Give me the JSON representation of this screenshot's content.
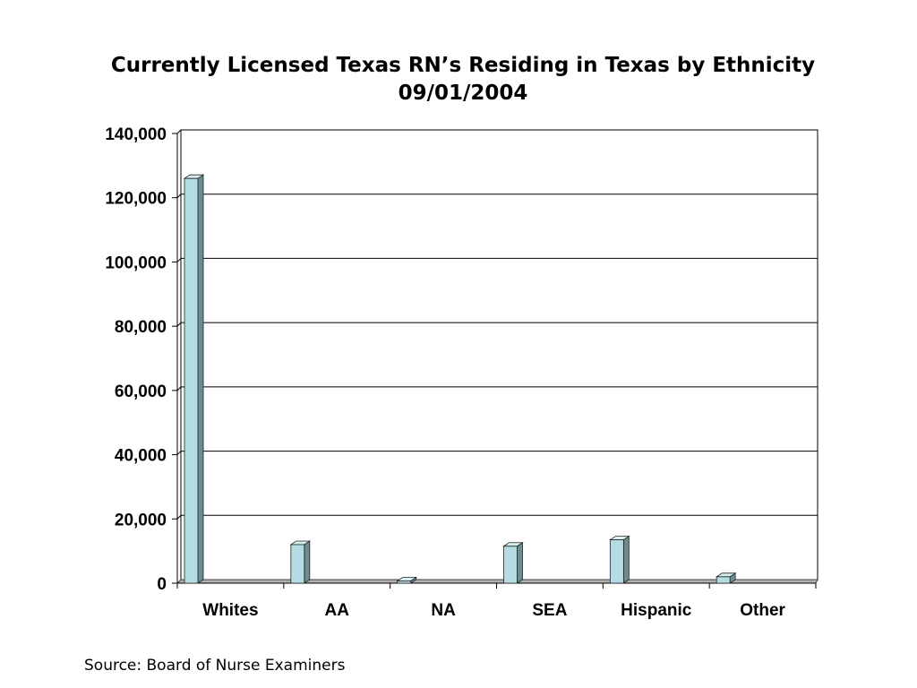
{
  "chart_data": {
    "type": "bar",
    "title": "Currently Licensed Texas RN’s Residing in Texas by Ethnicity",
    "subtitle": "09/01/2004",
    "categories": [
      "Whites",
      "AA",
      "NA",
      "SEA",
      "Hispanic",
      "Other"
    ],
    "values": [
      126000,
      12000,
      700,
      11500,
      13500,
      2000
    ],
    "ylim": [
      0,
      140000
    ],
    "yticks": [
      0,
      20000,
      40000,
      60000,
      80000,
      100000,
      120000,
      140000
    ],
    "ytick_labels": [
      "0",
      "20,000",
      "40,000",
      "60,000",
      "80,000",
      "100,000",
      "120,000",
      "140,000"
    ],
    "xlabel": "",
    "ylabel": "",
    "grid": true,
    "style": "3d-column",
    "colors": {
      "bar_front": "#b4dde3",
      "bar_side": "#6c8c90",
      "bar_top": "#d8eef1",
      "floor": "#b0b0b0",
      "grid": "#000000"
    }
  },
  "source": "Source: Board of Nurse Examiners"
}
